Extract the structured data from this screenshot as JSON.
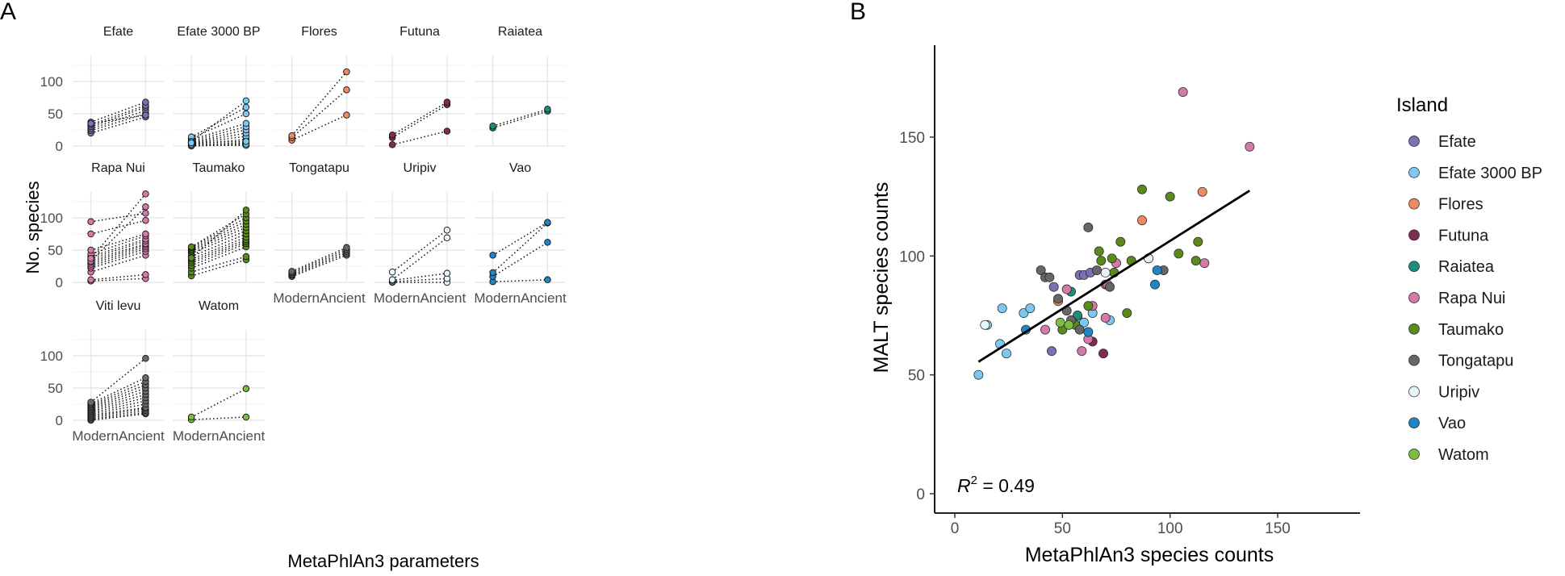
{
  "panel_a_letter": "A",
  "panel_b_letter": "B",
  "chart_data": [
    {
      "type": "line",
      "panel": "A",
      "xlabel": "MetaPhlAn3 parameters",
      "ylabel": "No. species",
      "categories": [
        "Modern",
        "Ancient"
      ],
      "ylim": [
        0,
        140
      ],
      "yticks": [
        0,
        50,
        100
      ],
      "grid": true,
      "facets": [
        {
          "name": "Efate",
          "color": "#7772b3",
          "pairs": [
            [
              20,
              45
            ],
            [
              24,
              50
            ],
            [
              27,
              55
            ],
            [
              30,
              60
            ],
            [
              33,
              63
            ],
            [
              37,
              68
            ],
            [
              35,
              48
            ]
          ]
        },
        {
          "name": "Efate 3000 BP",
          "color": "#7cc8f2",
          "pairs": [
            [
              0,
              2
            ],
            [
              2,
              5
            ],
            [
              3,
              10
            ],
            [
              4,
              15
            ],
            [
              5,
              20
            ],
            [
              6,
              25
            ],
            [
              8,
              30
            ],
            [
              10,
              35
            ],
            [
              12,
              50
            ],
            [
              14,
              60
            ],
            [
              7,
              70
            ],
            [
              1,
              1
            ],
            [
              3,
              3
            ],
            [
              5,
              7
            ]
          ]
        },
        {
          "name": "Flores",
          "color": "#ee8a5f",
          "pairs": [
            [
              9,
              48
            ],
            [
              13,
              87
            ],
            [
              16,
              115
            ]
          ]
        },
        {
          "name": "Futuna",
          "color": "#7d2d50",
          "pairs": [
            [
              2,
              23
            ],
            [
              13,
              64
            ],
            [
              17,
              68
            ]
          ]
        },
        {
          "name": "Raiatea",
          "color": "#1b8f7a",
          "pairs": [
            [
              28,
              54
            ],
            [
              31,
              57
            ]
          ]
        },
        {
          "name": "Rapa Nui",
          "color": "#d37aa7",
          "pairs": [
            [
              2,
              6
            ],
            [
              4,
              12
            ],
            [
              16,
              42
            ],
            [
              22,
              48
            ],
            [
              25,
              52
            ],
            [
              28,
              55
            ],
            [
              31,
              58
            ],
            [
              34,
              60
            ],
            [
              37,
              64
            ],
            [
              40,
              67
            ],
            [
              44,
              72
            ],
            [
              50,
              75
            ],
            [
              75,
              96
            ],
            [
              94,
              107
            ],
            [
              33,
              117
            ],
            [
              37,
              137
            ]
          ]
        },
        {
          "name": "Taumako",
          "color": "#5a8a1c",
          "pairs": [
            [
              10,
              35
            ],
            [
              16,
              40
            ],
            [
              22,
              55
            ],
            [
              26,
              60
            ],
            [
              30,
              63
            ],
            [
              33,
              66
            ],
            [
              36,
              70
            ],
            [
              40,
              75
            ],
            [
              45,
              80
            ],
            [
              48,
              85
            ],
            [
              50,
              90
            ],
            [
              52,
              95
            ],
            [
              54,
              100
            ],
            [
              55,
              106
            ],
            [
              38,
              112
            ]
          ]
        },
        {
          "name": "Tongatapu",
          "color": "#666666",
          "pairs": [
            [
              9,
              42
            ],
            [
              11,
              45
            ],
            [
              13,
              48
            ],
            [
              15,
              51
            ],
            [
              17,
              54
            ]
          ]
        },
        {
          "name": "Uripiv",
          "color": "#e6f4fb",
          "pairs": [
            [
              0,
              0
            ],
            [
              1,
              6
            ],
            [
              3,
              14
            ],
            [
              4,
              69
            ],
            [
              16,
              81
            ]
          ]
        },
        {
          "name": "Vao",
          "color": "#1f86c4",
          "pairs": [
            [
              1,
              4
            ],
            [
              9,
              62
            ],
            [
              15,
              92
            ],
            [
              42,
              93
            ]
          ]
        },
        {
          "name": "Viti levu",
          "color": "#6b6b6b",
          "pairs": [
            [
              0,
              10
            ],
            [
              2,
              12
            ],
            [
              4,
              15
            ],
            [
              6,
              18
            ],
            [
              8,
              20
            ],
            [
              10,
              25
            ],
            [
              12,
              30
            ],
            [
              14,
              35
            ],
            [
              16,
              40
            ],
            [
              18,
              45
            ],
            [
              20,
              50
            ],
            [
              22,
              55
            ],
            [
              24,
              60
            ],
            [
              26,
              66
            ],
            [
              28,
              96
            ]
          ]
        },
        {
          "name": "Watom",
          "color": "#7dbd3f",
          "pairs": [
            [
              1,
              5
            ],
            [
              5,
              49
            ]
          ]
        }
      ]
    },
    {
      "type": "scatter",
      "panel": "B",
      "xlabel": "MetaPhlAn3 species counts",
      "ylabel": "MALT species counts",
      "xlim": [
        0,
        180
      ],
      "ylim": [
        0,
        180
      ],
      "xticks": [
        0,
        50,
        100,
        150
      ],
      "yticks": [
        0,
        50,
        100,
        150
      ],
      "grid": false,
      "legend_title": "Island",
      "legend_position": "right",
      "annotation": {
        "lhs": "R",
        "sup": "2",
        "rhs": " = 0.49"
      },
      "regression": {
        "x": [
          11,
          137
        ],
        "y": [
          55.5,
          127.5
        ]
      },
      "series": [
        {
          "name": "Efate",
          "color": "#7772b3",
          "points": [
            [
              45,
              60
            ],
            [
              46,
              87
            ],
            [
              58,
              92
            ],
            [
              60,
              92
            ],
            [
              63,
              93
            ],
            [
              70,
              88
            ]
          ]
        },
        {
          "name": "Efate 3000 BP",
          "color": "#7cc8f2",
          "points": [
            [
              11,
              50
            ],
            [
              15,
              71
            ],
            [
              21,
              63
            ],
            [
              22,
              78
            ],
            [
              24,
              59
            ],
            [
              32,
              76
            ],
            [
              35,
              78
            ],
            [
              57,
              74
            ],
            [
              60,
              72
            ],
            [
              64,
              76
            ],
            [
              72,
              73
            ],
            [
              90,
              99
            ]
          ]
        },
        {
          "name": "Flores",
          "color": "#ee8a5f",
          "points": [
            [
              48,
              81
            ],
            [
              87,
              115
            ],
            [
              115,
              127
            ]
          ]
        },
        {
          "name": "Futuna",
          "color": "#7d2d50",
          "points": [
            [
              64,
              64
            ],
            [
              69,
              59
            ]
          ]
        },
        {
          "name": "Raiatea",
          "color": "#1b8f7a",
          "points": [
            [
              54,
              85
            ],
            [
              57,
              75
            ]
          ]
        },
        {
          "name": "Rapa Nui",
          "color": "#d37aa7",
          "points": [
            [
              42,
              69
            ],
            [
              52,
              86
            ],
            [
              55,
              72
            ],
            [
              59,
              60
            ],
            [
              62,
              65
            ],
            [
              64,
              79
            ],
            [
              70,
              74
            ],
            [
              71,
              88
            ],
            [
              75,
              97
            ],
            [
              106,
              169
            ],
            [
              116,
              97
            ],
            [
              137,
              146
            ]
          ]
        },
        {
          "name": "Taumako",
          "color": "#5a8a1c",
          "points": [
            [
              50,
              69
            ],
            [
              56,
              71
            ],
            [
              62,
              79
            ],
            [
              67,
              102
            ],
            [
              68,
              98
            ],
            [
              73,
              99
            ],
            [
              74,
              93
            ],
            [
              77,
              106
            ],
            [
              80,
              76
            ],
            [
              82,
              98
            ],
            [
              87,
              128
            ],
            [
              100,
              125
            ],
            [
              104,
              101
            ],
            [
              112,
              98
            ],
            [
              113,
              106
            ]
          ]
        },
        {
          "name": "Tongatapu",
          "color": "#666666",
          "points": [
            [
              40,
              94
            ],
            [
              42,
              91
            ],
            [
              44,
              91
            ],
            [
              48,
              82
            ],
            [
              52,
              77
            ],
            [
              54,
              73
            ],
            [
              58,
              69
            ],
            [
              62,
              112
            ],
            [
              66,
              94
            ],
            [
              72,
              87
            ],
            [
              97,
              94
            ]
          ]
        },
        {
          "name": "Uripiv",
          "color": "#e6f4fb",
          "points": [
            [
              14,
              71
            ],
            [
              70,
              93
            ],
            [
              90,
              99
            ]
          ]
        },
        {
          "name": "Vao",
          "color": "#1f86c4",
          "points": [
            [
              33,
              69
            ],
            [
              62,
              68
            ],
            [
              93,
              88
            ],
            [
              94,
              94
            ]
          ]
        },
        {
          "name": "Watom",
          "color": "#7dbd3f",
          "points": [
            [
              49,
              72
            ],
            [
              53,
              71
            ]
          ]
        }
      ]
    }
  ]
}
